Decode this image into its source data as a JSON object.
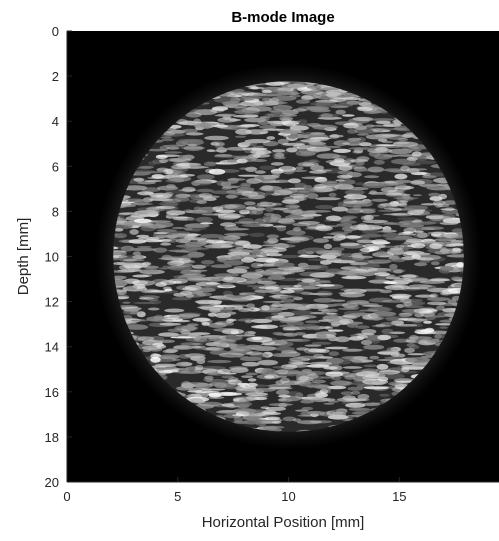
{
  "chart_data": {
    "type": "heatmap",
    "title": "B-mode Image",
    "xlabel": "Horizontal Position [mm]",
    "ylabel": "Depth [mm]",
    "xlim": [
      0,
      19.5
    ],
    "ylim": [
      0,
      20
    ],
    "y_reversed": true,
    "xticks": [
      0,
      5,
      10,
      15
    ],
    "yticks": [
      0,
      2,
      4,
      6,
      8,
      10,
      12,
      14,
      16,
      18,
      20
    ],
    "colormap": "gray",
    "grid": false,
    "feature": {
      "kind": "circular speckle region",
      "center_x_mm": 10,
      "center_depth_mm": 10,
      "radius_mm": 8
    }
  }
}
